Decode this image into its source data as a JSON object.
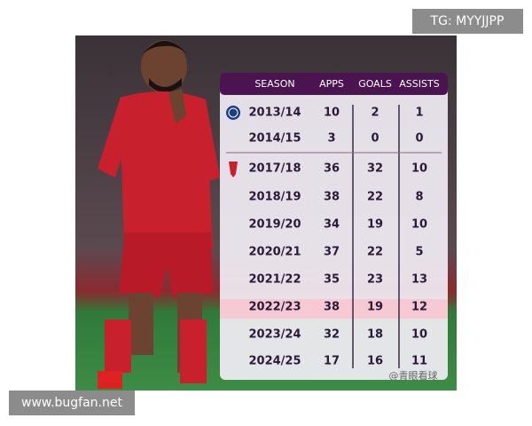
{
  "corner_label": "TG: MYYJJPP",
  "footer_label": "www.bugfan.net",
  "watermark": "@青眼看球",
  "table": {
    "header": [
      "SEASON",
      "APPS",
      "GOALS",
      "ASSISTS"
    ],
    "rows": [
      [
        "2013/14",
        10,
        2,
        1
      ],
      [
        "2014/15",
        3,
        0,
        0
      ],
      [
        "2017/18",
        36,
        32,
        10
      ],
      [
        "2018/19",
        38,
        22,
        8
      ],
      [
        "2019/20",
        34,
        19,
        10
      ],
      [
        "2020/21",
        37,
        22,
        5
      ],
      [
        "2021/22",
        35,
        23,
        13
      ],
      [
        "2022/23",
        38,
        19,
        12
      ],
      [
        "2023/24",
        32,
        18,
        10
      ],
      [
        "2024/25",
        17,
        16,
        11
      ]
    ]
  }
}
